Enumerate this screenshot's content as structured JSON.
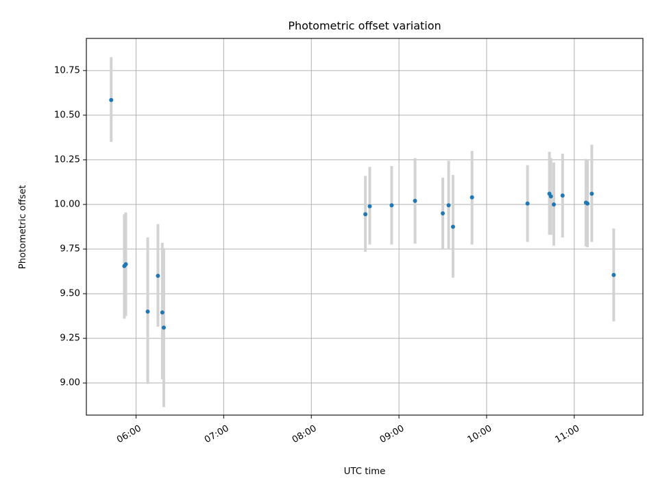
{
  "chart_data": {
    "type": "scatter",
    "title": "Photometric offset variation",
    "xlabel": "UTC time",
    "ylabel": "Photometric offset",
    "x_ticks": [
      "06:00",
      "07:00",
      "08:00",
      "09:00",
      "10:00",
      "11:00"
    ],
    "y_ticks": [
      "9.00",
      "9.25",
      "9.50",
      "9.75",
      "10.00",
      "10.25",
      "10.50",
      "10.75"
    ],
    "xlim": [
      "05:26",
      "11:47"
    ],
    "ylim": [
      8.82,
      10.93
    ],
    "grid": true,
    "colors": {
      "point": "#1f77b4",
      "errorbar": "#d3d3d3",
      "grid": "#b0b0b0"
    },
    "series": [
      {
        "points": [
          {
            "x": "05:43",
            "y": 10.585,
            "ymin": 10.35,
            "ymax": 10.825
          },
          {
            "x": "05:52",
            "y": 9.655,
            "ymin": 9.36,
            "ymax": 9.945
          },
          {
            "x": "05:53",
            "y": 9.665,
            "ymin": 9.375,
            "ymax": 9.955
          },
          {
            "x": "06:08",
            "y": 9.4,
            "ymin": 8.995,
            "ymax": 9.815
          },
          {
            "x": "06:15",
            "y": 9.6,
            "ymin": 9.315,
            "ymax": 9.89
          },
          {
            "x": "06:18",
            "y": 9.395,
            "ymin": 9.02,
            "ymax": 9.785
          },
          {
            "x": "06:19",
            "y": 9.31,
            "ymin": 8.865,
            "ymax": 9.755
          },
          {
            "x": "08:37",
            "y": 9.945,
            "ymin": 9.735,
            "ymax": 10.16
          },
          {
            "x": "08:40",
            "y": 9.99,
            "ymin": 9.775,
            "ymax": 10.21
          },
          {
            "x": "08:55",
            "y": 9.995,
            "ymin": 9.775,
            "ymax": 10.215
          },
          {
            "x": "09:11",
            "y": 10.02,
            "ymin": 9.78,
            "ymax": 10.26
          },
          {
            "x": "09:30",
            "y": 9.95,
            "ymin": 9.75,
            "ymax": 10.15
          },
          {
            "x": "09:34",
            "y": 9.995,
            "ymin": 9.75,
            "ymax": 10.245
          },
          {
            "x": "09:37",
            "y": 9.875,
            "ymin": 9.59,
            "ymax": 10.165
          },
          {
            "x": "09:50",
            "y": 10.04,
            "ymin": 9.775,
            "ymax": 10.3
          },
          {
            "x": "10:28",
            "y": 10.005,
            "ymin": 9.79,
            "ymax": 10.22
          },
          {
            "x": "10:43",
            "y": 10.06,
            "ymin": 9.83,
            "ymax": 10.295
          },
          {
            "x": "10:44",
            "y": 10.045,
            "ymin": 9.83,
            "ymax": 10.26
          },
          {
            "x": "10:46",
            "y": 10.0,
            "ymin": 9.77,
            "ymax": 10.235
          },
          {
            "x": "10:52",
            "y": 10.05,
            "ymin": 9.815,
            "ymax": 10.285
          },
          {
            "x": "11:08",
            "y": 10.01,
            "ymin": 9.765,
            "ymax": 10.255
          },
          {
            "x": "11:09",
            "y": 10.005,
            "ymin": 9.76,
            "ymax": 10.25
          },
          {
            "x": "11:12",
            "y": 10.06,
            "ymin": 9.79,
            "ymax": 10.335
          },
          {
            "x": "11:27",
            "y": 9.605,
            "ymin": 9.345,
            "ymax": 9.865
          }
        ]
      }
    ]
  }
}
